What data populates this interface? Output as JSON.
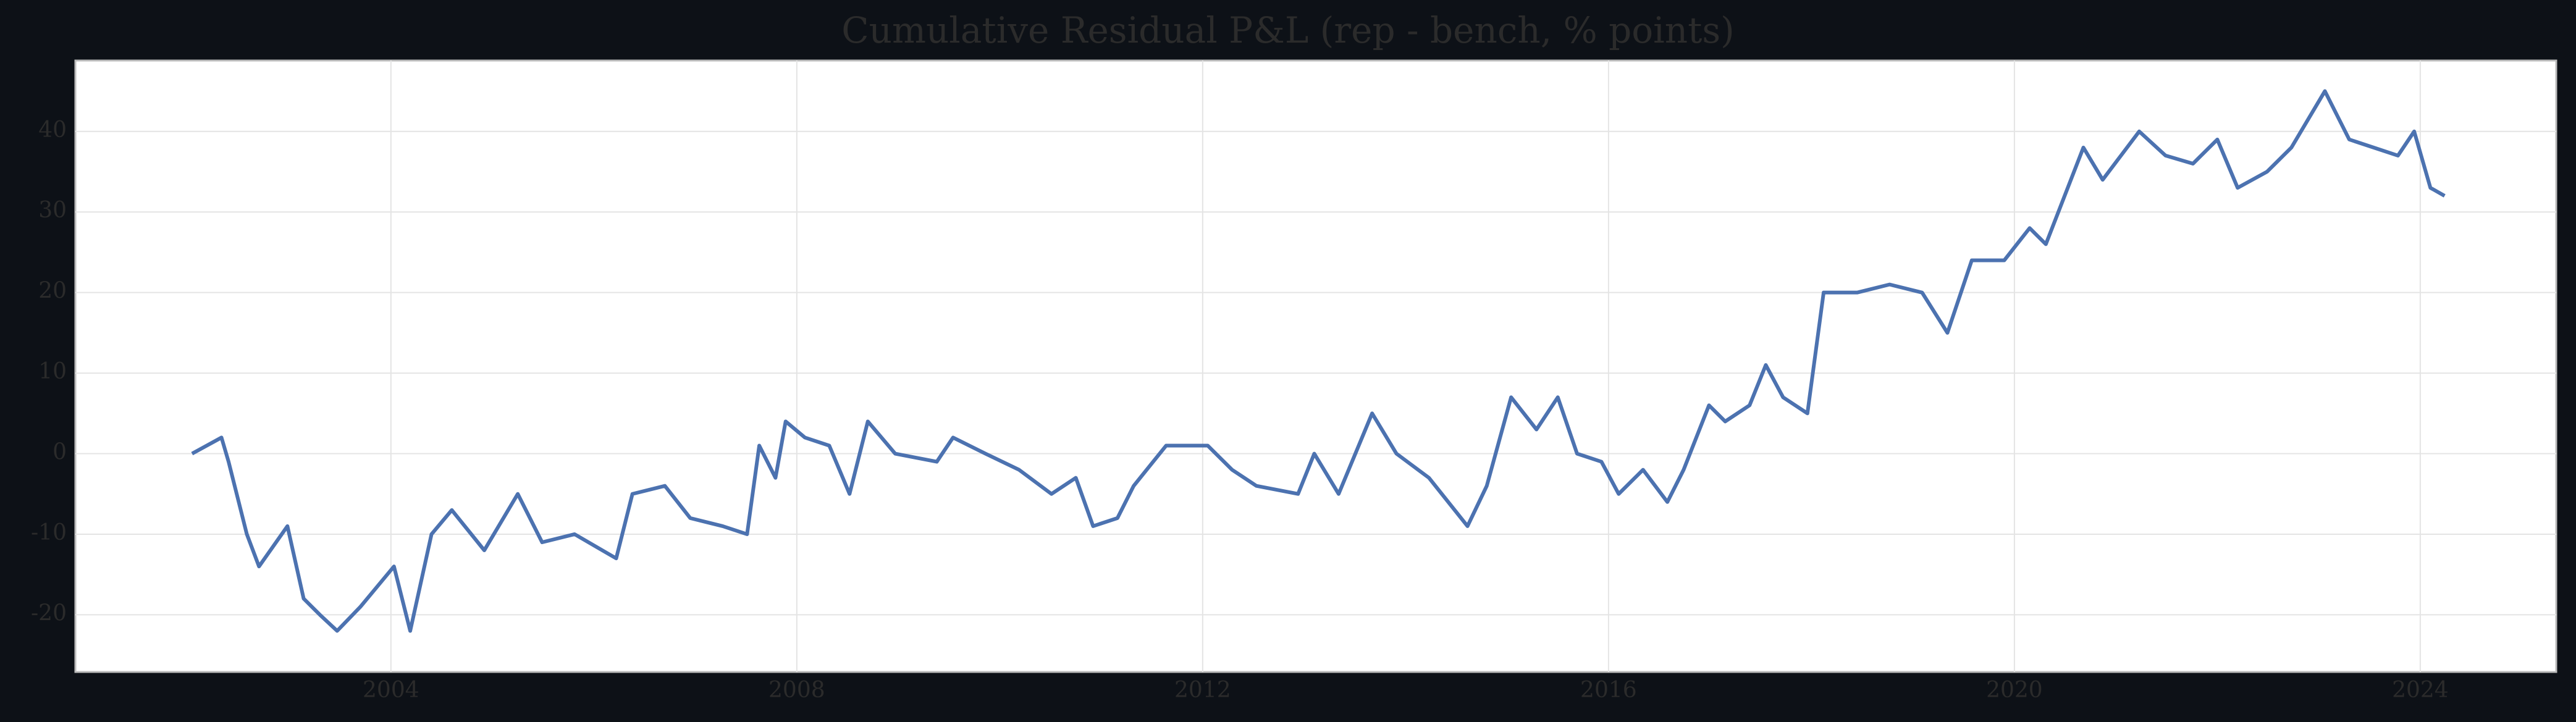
{
  "chart_data": {
    "type": "line",
    "title": "Cumulative Residual P&L (rep - bench, % points)",
    "x": [
      2002.04,
      2002.33,
      2002.4,
      2002.58,
      2002.7,
      2002.98,
      2003.14,
      2003.3,
      2003.47,
      2003.7,
      2004.03,
      2004.19,
      2004.4,
      2004.6,
      2004.92,
      2005.25,
      2005.49,
      2005.81,
      2006.22,
      2006.38,
      2006.7,
      2006.95,
      2007.27,
      2007.51,
      2007.63,
      2007.79,
      2007.89,
      2008.08,
      2008.32,
      2008.52,
      2008.7,
      2008.97,
      2009.38,
      2009.54,
      2009.86,
      2010.19,
      2010.51,
      2010.75,
      2010.92,
      2011.16,
      2011.32,
      2011.64,
      2012.05,
      2012.29,
      2012.53,
      2012.94,
      2013.1,
      2013.34,
      2013.67,
      2013.91,
      2014.23,
      2014.61,
      2014.8,
      2015.04,
      2015.29,
      2015.5,
      2015.69,
      2015.93,
      2016.1,
      2016.34,
      2016.58,
      2016.74,
      2016.99,
      2017.15,
      2017.39,
      2017.55,
      2017.72,
      2017.96,
      2018.12,
      2018.45,
      2018.77,
      2019.09,
      2019.34,
      2019.58,
      2019.9,
      2020.15,
      2020.31,
      2020.68,
      2020.87,
      2021.23,
      2021.49,
      2021.76,
      2022.0,
      2022.2,
      2022.49,
      2022.73,
      2023.06,
      2023.3,
      2023.54,
      2023.78,
      2023.94,
      2024.1,
      2024.24
    ],
    "series": [
      {
        "name": "Cumulative Residual P&L",
        "color": "#4c72b0",
        "values": [
          0,
          2,
          -1,
          -10,
          -14,
          -9,
          -18,
          -20,
          -22,
          -19,
          -14,
          -22,
          -10,
          -7,
          -12,
          -5,
          -11,
          -10,
          -13,
          -5,
          -4,
          -8,
          -9,
          -10,
          1,
          -3,
          4,
          2,
          1,
          -5,
          4,
          0,
          -1,
          2,
          0,
          -2,
          -5,
          -3,
          -9,
          -8,
          -4,
          1,
          1,
          -2,
          -4,
          -5,
          0,
          -5,
          5,
          0,
          -3,
          -9,
          -4,
          7,
          3,
          7,
          0,
          -1,
          -5,
          -2,
          -6,
          -2,
          6,
          4,
          6,
          11,
          7,
          5,
          20,
          20,
          21,
          20,
          15,
          24,
          24,
          28,
          26,
          38,
          34,
          40,
          37,
          36,
          39,
          33,
          35,
          38,
          45,
          39,
          38,
          37,
          40,
          33,
          32
        ]
      }
    ],
    "xlim": [
      2000.89,
      2025.34
    ],
    "xticks": [
      2004,
      2008,
      2012,
      2016,
      2020,
      2024
    ],
    "ylim": [
      -27.1,
      48.8
    ],
    "yticks": [
      -20,
      -10,
      0,
      10,
      20,
      30,
      40
    ],
    "grid": true
  }
}
